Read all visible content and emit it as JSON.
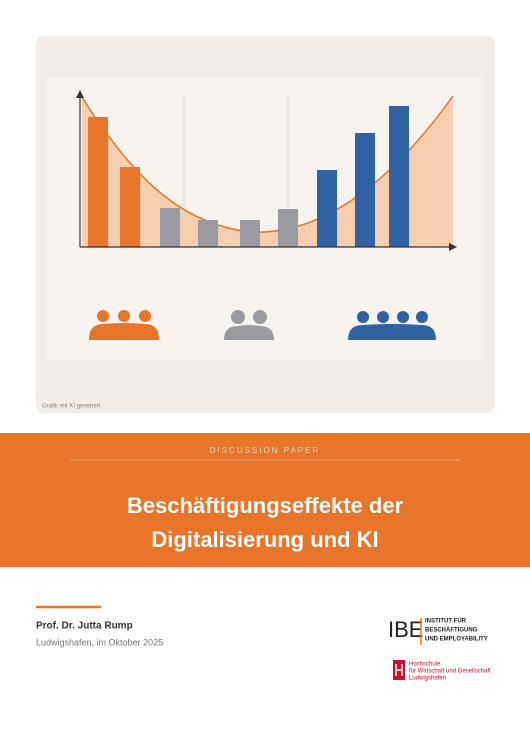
{
  "cover": {
    "image_credit": "Grafik mit KI generiert",
    "kicker": "DISCUSSION PAPER",
    "title_lines": [
      "Beschäftigungseffekte der",
      "Digitalisierung und KI"
    ],
    "author": "Prof. Dr. Jutta Rump",
    "place_date": "Ludwigshafen, im Oktober 2025",
    "logo_ibe": {
      "mark": "IBE",
      "lines": [
        "INSTITUT FÜR",
        "BESCHÄFTIGUNG",
        "UND EMPLOYABILITY"
      ]
    },
    "logo_hwg": {
      "lines": [
        "Hochschule",
        "für Wirtschaft und Gesellschaft",
        "Ludwigshafen"
      ]
    }
  }
}
